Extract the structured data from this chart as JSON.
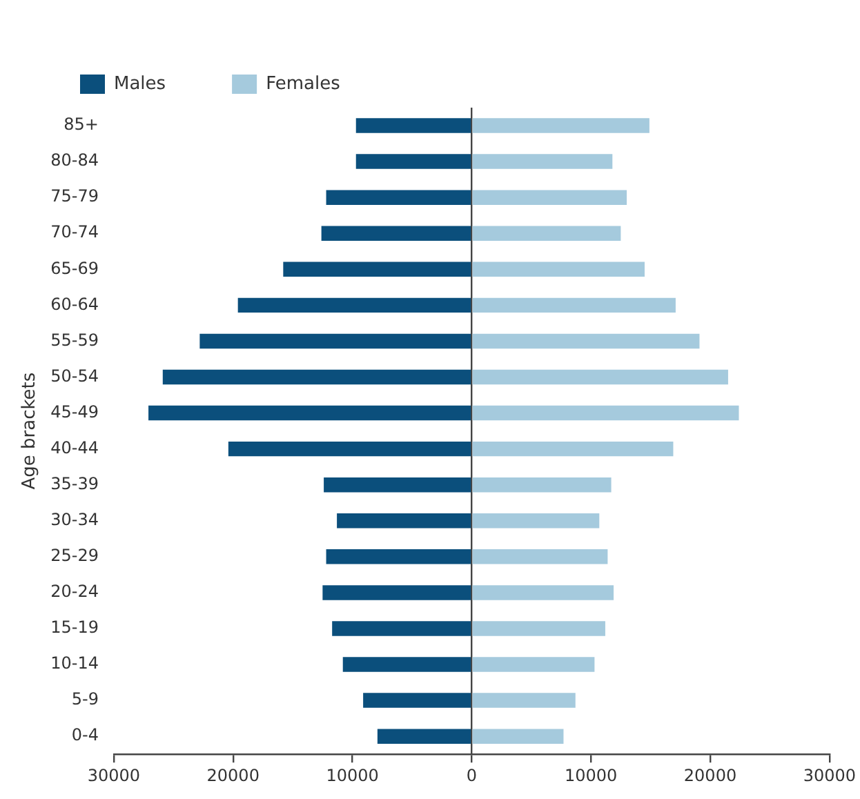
{
  "chart_data": {
    "type": "bar",
    "orientation": "horizontal",
    "stacked": true,
    "ylabel": "Age brackets",
    "legend": "top left",
    "categories": [
      "85+",
      "80-84",
      "75-79",
      "70-74",
      "65-69",
      "60-64",
      "55-59",
      "50-54",
      "45-49",
      "40-44",
      "35-39",
      "30-34",
      "25-29",
      "20-24",
      "15-19",
      "10-14",
      "5-9",
      "0-4"
    ],
    "series": [
      {
        "name": "Males",
        "color": "#0b4f7c",
        "values": [
          -9700,
          -9700,
          -12200,
          -12600,
          -15800,
          -19600,
          -22800,
          -25900,
          -27100,
          -20400,
          -12400,
          -11300,
          -12200,
          -12500,
          -11700,
          -10800,
          -9100,
          -7900
        ]
      },
      {
        "name": "Females",
        "color": "#a5cadd",
        "values": [
          14900,
          11800,
          13000,
          12500,
          14500,
          17100,
          19100,
          21500,
          22400,
          16900,
          11700,
          10700,
          11400,
          11900,
          11200,
          10300,
          8700,
          7700
        ]
      }
    ],
    "xlim": [
      -30000,
      30000
    ],
    "xticks": [
      {
        "value": -30000,
        "label": "30000"
      },
      {
        "value": -20000,
        "label": "20000"
      },
      {
        "value": -10000,
        "label": "10000"
      },
      0,
      10000,
      20000,
      30000
    ]
  }
}
